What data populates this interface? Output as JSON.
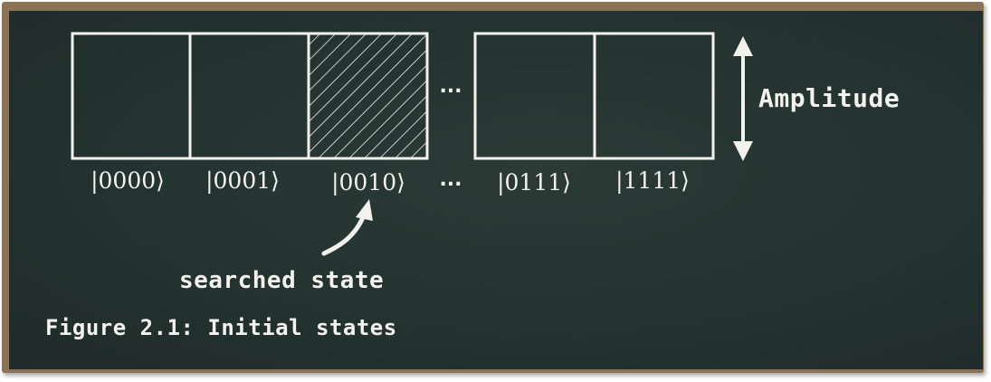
{
  "diagram": {
    "states": [
      {
        "label": "|0000⟩",
        "searched": false
      },
      {
        "label": "|0001⟩",
        "searched": false
      },
      {
        "label": "|0010⟩",
        "searched": true
      },
      {
        "label": "|0111⟩",
        "searched": false
      },
      {
        "label": "|1111⟩",
        "searched": false
      }
    ],
    "ellipsis": "...",
    "amplitude_label": "Amplitude",
    "searched_label": "searched state",
    "caption": "Figure 2.1: Initial states"
  },
  "colors": {
    "board": "#243330",
    "frame": "#8b7355",
    "chalk": "#f2f2ee"
  }
}
